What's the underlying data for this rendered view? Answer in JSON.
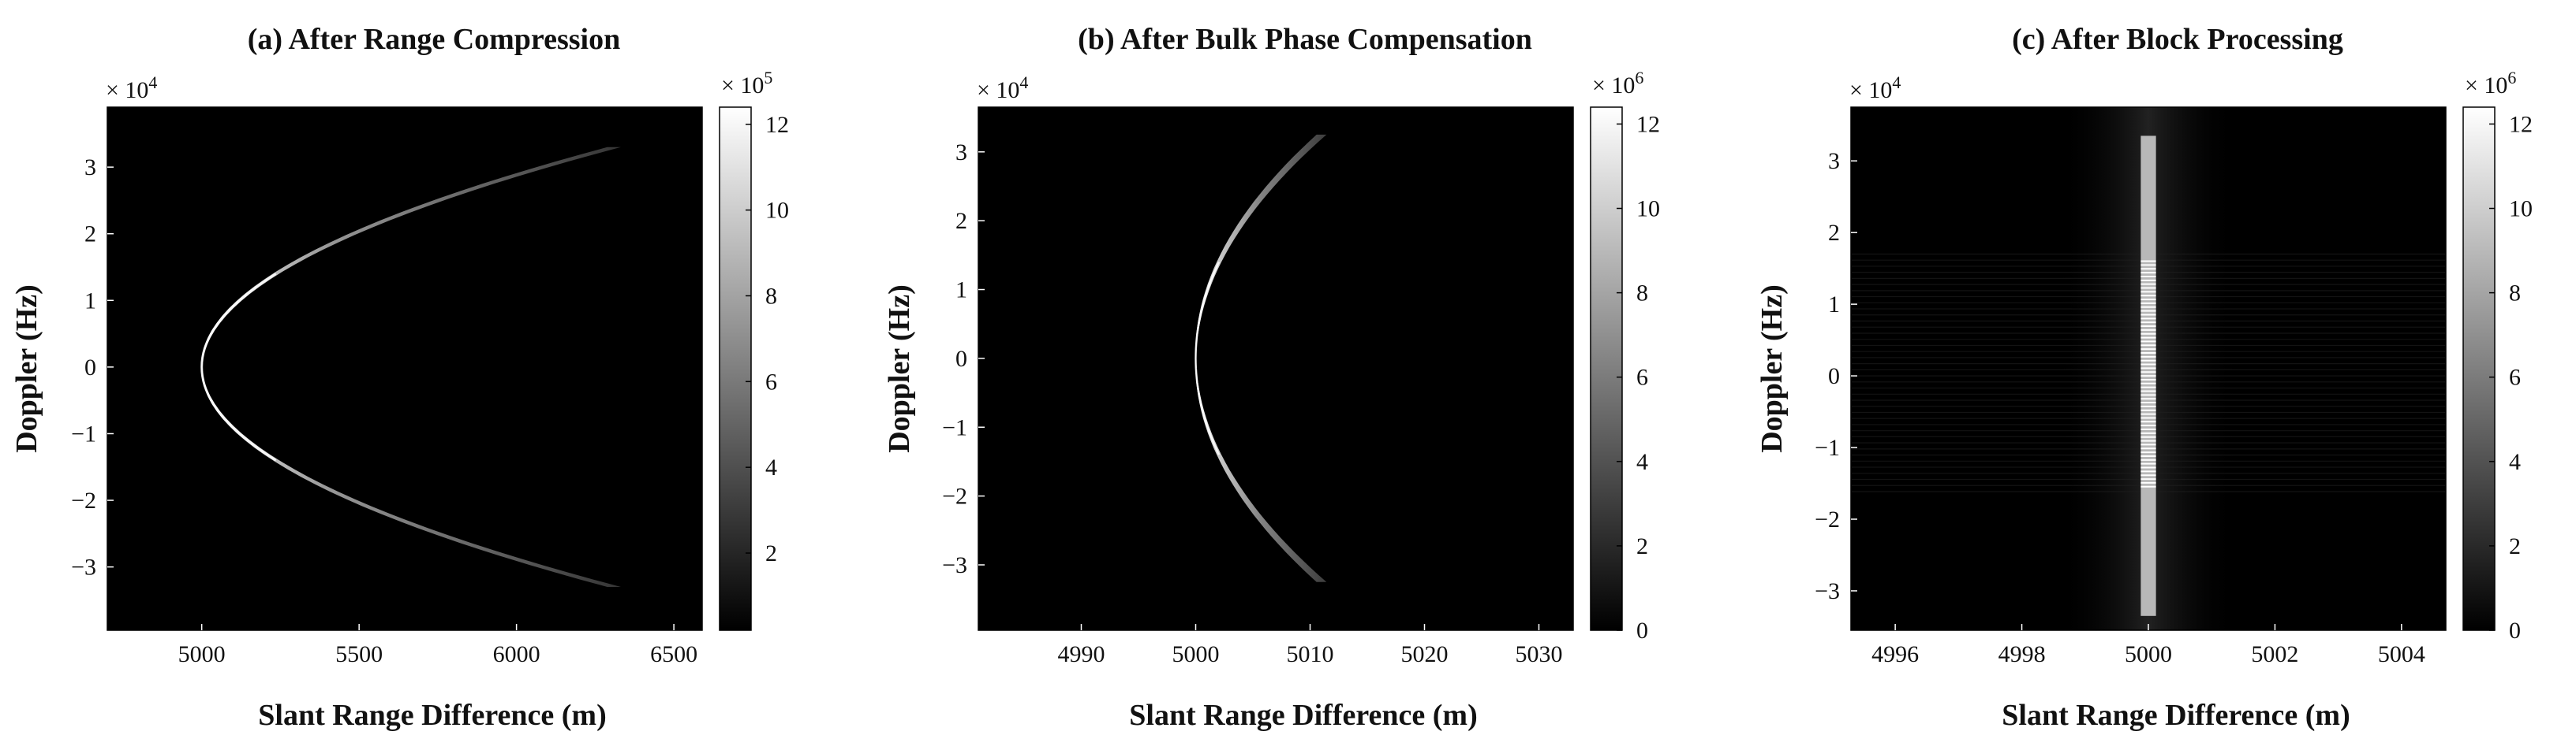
{
  "chart_data": [
    {
      "type": "heatmap",
      "title": "(a) After Range Compression",
      "xlabel": "Slant Range Difference  (m)",
      "ylabel": "Doppler (Hz)",
      "y_multiplier": "× 10",
      "y_multiplier_exp": "4",
      "x_ticks": [
        "5000",
        "5500",
        "6000",
        "6500"
      ],
      "x_tick_values": [
        5000,
        5500,
        6000,
        6500
      ],
      "y_ticks": [
        "-3",
        "-2",
        "-1",
        "0",
        "1",
        "2",
        "3"
      ],
      "y_tick_values": [
        -3,
        -2,
        -1,
        0,
        1,
        2,
        3
      ],
      "xlim": [
        4700,
        6590
      ],
      "ylim": [
        -3.95,
        3.9
      ],
      "colorbar": {
        "multiplier": "× 10",
        "multiplier_exp": "5",
        "ticks": [
          "2",
          "4",
          "6",
          "8",
          "10",
          "12"
        ],
        "tick_values": [
          2,
          4,
          6,
          8,
          10,
          12
        ],
        "range": [
          0.2,
          12.4
        ],
        "colormap": "gray"
      },
      "trace": {
        "shape": "range-migration parabola",
        "vertex": [
          5000,
          0
        ],
        "end_top": [
          6310,
          3.3
        ],
        "end_bottom": [
          6310,
          -3.3
        ],
        "end_halfwidth_m": 20,
        "brightness": "bright near vertex, fading toward ends"
      }
    },
    {
      "type": "heatmap",
      "title": "(b) After Bulk Phase Compensation",
      "xlabel": "Slant Range Difference  (m)",
      "ylabel": "Doppler (Hz)",
      "y_multiplier": "× 10",
      "y_multiplier_exp": "4",
      "x_ticks": [
        "4990",
        "5000",
        "5010",
        "5020",
        "5030"
      ],
      "x_tick_values": [
        4990,
        5000,
        5010,
        5020,
        5030
      ],
      "y_ticks": [
        "-3",
        "-2",
        "-1",
        "0",
        "1",
        "2",
        "3"
      ],
      "y_tick_values": [
        -3,
        -2,
        -1,
        0,
        1,
        2,
        3
      ],
      "xlim": [
        4981,
        5033
      ],
      "ylim": [
        -3.95,
        3.65
      ],
      "colorbar": {
        "multiplier": "× 10",
        "multiplier_exp": "6",
        "ticks": [
          "0",
          "2",
          "4",
          "6",
          "8",
          "10",
          "12"
        ],
        "tick_values": [
          0,
          2,
          4,
          6,
          8,
          10,
          12
        ],
        "range": [
          0,
          12.4
        ],
        "colormap": "gray"
      },
      "trace": {
        "shape": "residual migration curve",
        "vertex": [
          5000,
          0
        ],
        "end_top": [
          5011,
          3.25
        ],
        "end_bottom": [
          5011,
          -3.25
        ],
        "end_halfwidth_m": 0.4,
        "brightness": "bright near vertex, fading toward ends"
      }
    },
    {
      "type": "heatmap",
      "title": "(c) After Block Processing",
      "xlabel": "Slant Range Difference  (m)",
      "ylabel": "Doppler (Hz)",
      "y_multiplier": "× 10",
      "y_multiplier_exp": "4",
      "x_ticks": [
        "4996",
        "4998",
        "5000",
        "5002",
        "5004"
      ],
      "x_tick_values": [
        4996,
        4998,
        5000,
        5002,
        5004
      ],
      "y_ticks": [
        "-3",
        "-2",
        "-1",
        "0",
        "1",
        "2",
        "3"
      ],
      "y_tick_values": [
        -3,
        -2,
        -1,
        0,
        1,
        2,
        3
      ],
      "xlim": [
        4995.3,
        5004.7
      ],
      "ylim": [
        -3.55,
        3.75
      ],
      "colorbar": {
        "multiplier": "× 10",
        "multiplier_exp": "6",
        "ticks": [
          "0",
          "2",
          "4",
          "6",
          "8",
          "10",
          "12"
        ],
        "tick_values": [
          0,
          2,
          4,
          6,
          8,
          10,
          12
        ],
        "range": [
          0,
          12.4
        ],
        "colormap": "gray"
      },
      "trace": {
        "shape": "focused vertical line",
        "x": 5000,
        "y_range": [
          -3.35,
          3.35
        ],
        "halfwidth_m": 0.12,
        "brightness": "uniform along Doppler"
      }
    }
  ]
}
